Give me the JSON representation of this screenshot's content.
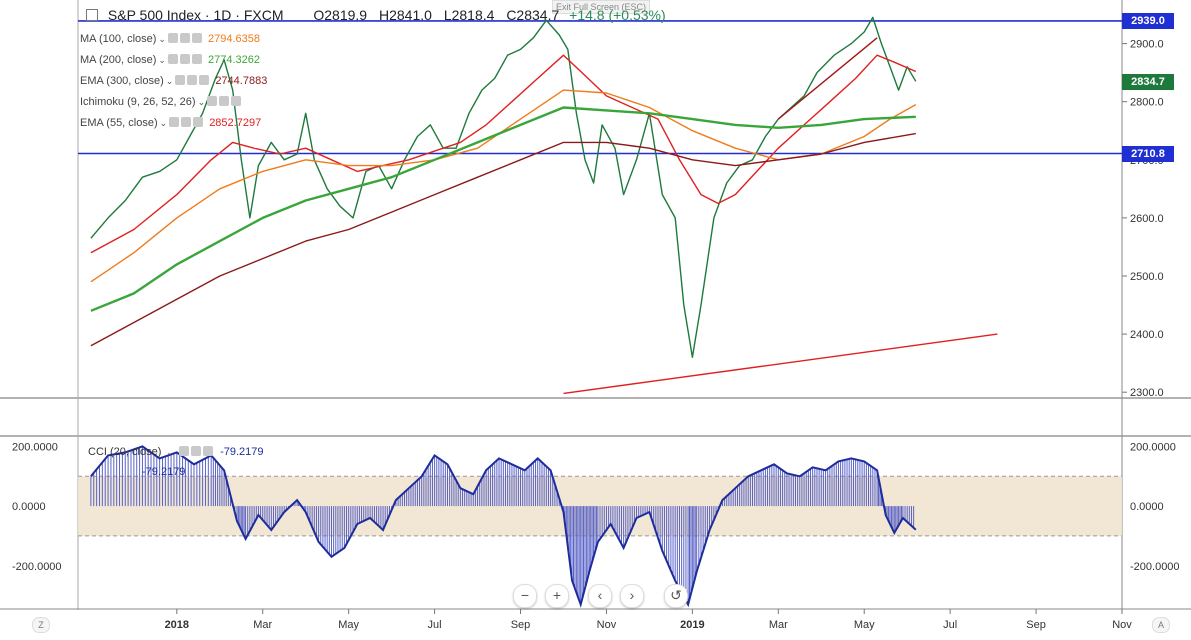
{
  "header": {
    "exit_hint": "Exit Full Screen (ESC)",
    "symbol": "S&P 500 Index · 1D · FXCM",
    "open": "O2819.9",
    "high": "H2841.0",
    "low": "L2818.4",
    "close": "C2834.7",
    "change": "+14.8 (+0.53%)"
  },
  "indicators": [
    {
      "name": "MA (100, close)",
      "value": "2794.6358",
      "color": "#f07b1a"
    },
    {
      "name": "MA (200, close)",
      "value": "2774.3262",
      "color": "#3aa53a"
    },
    {
      "name": "EMA (300, close)",
      "value": "2744.7883",
      "color": "#8b1a1a"
    },
    {
      "name": "Ichimoku (9, 26, 52, 26)",
      "value": "",
      "color": "#999999"
    },
    {
      "name": "EMA (55, close)",
      "value": "2852.7297",
      "color": "#e02020"
    }
  ],
  "cci_legend": {
    "name": "CCI (20, close)",
    "value1": "-79.2179",
    "value2": "-79.2179"
  },
  "price_pills": [
    {
      "label": "2939.0",
      "value": 2939.0,
      "color": "#1f2fd1"
    },
    {
      "label": "2834.7",
      "value": 2834.7,
      "color": "#1e7a3c"
    },
    {
      "label": "2710.8",
      "value": 2710.8,
      "color": "#1f2fd1"
    }
  ],
  "nav": {
    "zoom_out": "−",
    "zoom_in": "+",
    "prev": "‹",
    "next": "›",
    "reset": "↺"
  },
  "corners": {
    "left": "Z",
    "right": "A"
  },
  "chart_data": [
    {
      "type": "line",
      "title": "S&P 500 Index",
      "x_ticks": [
        "2018",
        "Mar",
        "May",
        "Jul",
        "Sep",
        "Nov",
        "2019",
        "Mar",
        "May",
        "Jul",
        "Sep",
        "Nov"
      ],
      "x_tick_months": [
        0,
        2,
        4,
        6,
        8,
        10,
        12,
        14,
        16,
        18,
        20,
        22
      ],
      "x_range_months": [
        -2.3,
        22.0
      ],
      "y_ticks": [
        2300,
        2400,
        2500,
        2600,
        2700,
        2800,
        2900
      ],
      "y_tick_labels": [
        "2300.0",
        "2400.0",
        "2500.0",
        "2600.0",
        "2700.0",
        "2800.0",
        "2900.0"
      ],
      "ylim": [
        2290,
        2975
      ],
      "horizontal_lines": [
        2939.0,
        2710.8
      ],
      "series": [
        {
          "color": "#1e7a3c",
          "role": "price",
          "points": [
            [
              -2.0,
              2565
            ],
            [
              -1.6,
              2600
            ],
            [
              -1.2,
              2630
            ],
            [
              -0.8,
              2670
            ],
            [
              -0.4,
              2680
            ],
            [
              0.0,
              2700
            ],
            [
              0.3,
              2740
            ],
            [
              0.6,
              2780
            ],
            [
              0.9,
              2840
            ],
            [
              1.1,
              2872
            ],
            [
              1.3,
              2820
            ],
            [
              1.5,
              2700
            ],
            [
              1.7,
              2600
            ],
            [
              1.9,
              2690
            ],
            [
              2.2,
              2730
            ],
            [
              2.5,
              2700
            ],
            [
              2.8,
              2710
            ],
            [
              3.0,
              2780
            ],
            [
              3.2,
              2700
            ],
            [
              3.5,
              2650
            ],
            [
              3.8,
              2620
            ],
            [
              4.1,
              2600
            ],
            [
              4.4,
              2680
            ],
            [
              4.7,
              2690
            ],
            [
              5.0,
              2650
            ],
            [
              5.3,
              2700
            ],
            [
              5.6,
              2740
            ],
            [
              5.9,
              2760
            ],
            [
              6.2,
              2720
            ],
            [
              6.5,
              2720
            ],
            [
              6.8,
              2780
            ],
            [
              7.1,
              2820
            ],
            [
              7.4,
              2840
            ],
            [
              7.7,
              2880
            ],
            [
              8.0,
              2890
            ],
            [
              8.3,
              2910
            ],
            [
              8.6,
              2940
            ],
            [
              8.9,
              2915
            ],
            [
              9.1,
              2890
            ],
            [
              9.3,
              2780
            ],
            [
              9.5,
              2700
            ],
            [
              9.7,
              2660
            ],
            [
              9.9,
              2760
            ],
            [
              10.2,
              2720
            ],
            [
              10.4,
              2640
            ],
            [
              10.7,
              2700
            ],
            [
              11.0,
              2780
            ],
            [
              11.3,
              2640
            ],
            [
              11.6,
              2600
            ],
            [
              11.8,
              2450
            ],
            [
              12.0,
              2360
            ],
            [
              12.2,
              2450
            ],
            [
              12.5,
              2600
            ],
            [
              12.8,
              2660
            ],
            [
              13.1,
              2690
            ],
            [
              13.4,
              2700
            ],
            [
              13.7,
              2740
            ],
            [
              14.0,
              2770
            ],
            [
              14.3,
              2790
            ],
            [
              14.6,
              2810
            ],
            [
              14.9,
              2850
            ],
            [
              15.3,
              2880
            ],
            [
              15.7,
              2900
            ],
            [
              16.0,
              2920
            ],
            [
              16.2,
              2945
            ],
            [
              16.4,
              2900
            ],
            [
              16.6,
              2860
            ],
            [
              16.8,
              2820
            ],
            [
              17.0,
              2860
            ],
            [
              17.2,
              2835
            ]
          ]
        },
        {
          "color": "#e02020",
          "role": "EMA 55",
          "points": [
            [
              -2.0,
              2540
            ],
            [
              -1.0,
              2580
            ],
            [
              0.0,
              2640
            ],
            [
              0.8,
              2700
            ],
            [
              1.3,
              2730
            ],
            [
              1.8,
              2720
            ],
            [
              2.4,
              2710
            ],
            [
              3.0,
              2720
            ],
            [
              3.6,
              2700
            ],
            [
              4.2,
              2680
            ],
            [
              4.8,
              2690
            ],
            [
              5.4,
              2700
            ],
            [
              6.0,
              2715
            ],
            [
              6.6,
              2730
            ],
            [
              7.2,
              2760
            ],
            [
              7.8,
              2800
            ],
            [
              8.4,
              2840
            ],
            [
              9.0,
              2880
            ],
            [
              9.5,
              2845
            ],
            [
              10.0,
              2810
            ],
            [
              10.6,
              2790
            ],
            [
              11.2,
              2770
            ],
            [
              11.7,
              2700
            ],
            [
              12.2,
              2640
            ],
            [
              12.6,
              2625
            ],
            [
              13.0,
              2640
            ],
            [
              13.5,
              2680
            ],
            [
              14.0,
              2720
            ],
            [
              14.6,
              2760
            ],
            [
              15.2,
              2800
            ],
            [
              15.8,
              2840
            ],
            [
              16.3,
              2880
            ],
            [
              16.7,
              2868
            ],
            [
              17.2,
              2852
            ]
          ]
        },
        {
          "color": "#f07b1a",
          "role": "MA 100",
          "points": [
            [
              -2.0,
              2490
            ],
            [
              -1.0,
              2540
            ],
            [
              0.0,
              2600
            ],
            [
              1.0,
              2650
            ],
            [
              2.0,
              2680
            ],
            [
              3.0,
              2700
            ],
            [
              4.0,
              2690
            ],
            [
              5.0,
              2690
            ],
            [
              6.0,
              2700
            ],
            [
              7.0,
              2720
            ],
            [
              8.0,
              2770
            ],
            [
              9.0,
              2820
            ],
            [
              10.0,
              2815
            ],
            [
              11.0,
              2790
            ],
            [
              12.0,
              2750
            ],
            [
              13.0,
              2720
            ],
            [
              14.0,
              2700
            ],
            [
              15.0,
              2710
            ],
            [
              16.0,
              2740
            ],
            [
              16.6,
              2770
            ],
            [
              17.2,
              2795
            ]
          ]
        },
        {
          "color": "#3aa53a",
          "role": "MA 200",
          "points": [
            [
              -2.0,
              2440
            ],
            [
              -1.0,
              2470
            ],
            [
              0.0,
              2520
            ],
            [
              1.0,
              2560
            ],
            [
              2.0,
              2600
            ],
            [
              3.0,
              2630
            ],
            [
              4.0,
              2650
            ],
            [
              5.0,
              2670
            ],
            [
              6.0,
              2700
            ],
            [
              7.0,
              2730
            ],
            [
              8.0,
              2760
            ],
            [
              9.0,
              2790
            ],
            [
              10.0,
              2785
            ],
            [
              11.0,
              2780
            ],
            [
              12.0,
              2770
            ],
            [
              13.0,
              2760
            ],
            [
              14.0,
              2755
            ],
            [
              15.0,
              2760
            ],
            [
              16.0,
              2770
            ],
            [
              17.2,
              2774
            ]
          ]
        },
        {
          "color": "#8b1a1a",
          "role": "EMA 300",
          "points": [
            [
              -2.0,
              2380
            ],
            [
              -1.0,
              2420
            ],
            [
              0.0,
              2460
            ],
            [
              1.0,
              2500
            ],
            [
              2.0,
              2530
            ],
            [
              3.0,
              2560
            ],
            [
              4.0,
              2580
            ],
            [
              5.0,
              2610
            ],
            [
              6.0,
              2640
            ],
            [
              7.0,
              2670
            ],
            [
              8.0,
              2700
            ],
            [
              9.0,
              2730
            ],
            [
              10.0,
              2730
            ],
            [
              11.0,
              2720
            ],
            [
              12.0,
              2700
            ],
            [
              13.0,
              2690
            ],
            [
              14.0,
              2700
            ],
            [
              15.0,
              2710
            ],
            [
              16.0,
              2730
            ],
            [
              17.2,
              2745
            ]
          ]
        },
        {
          "color": "#e02020",
          "role": "support trendline",
          "points": [
            [
              9.0,
              2298
            ],
            [
              19.1,
              2400
            ]
          ]
        },
        {
          "color": "#a01818",
          "role": "channel line",
          "points": [
            [
              14.0,
              2770
            ],
            [
              16.3,
              2910
            ]
          ]
        }
      ]
    },
    {
      "type": "bar",
      "title": "CCI",
      "y_ticks": [
        -200,
        0,
        200
      ],
      "y_tick_labels": [
        "-200.0000",
        "0.0000",
        "200.0000"
      ],
      "ylim": [
        -345,
        235
      ],
      "band": [
        -100,
        100
      ],
      "x_range_months": [
        -2.3,
        22.0
      ],
      "points": [
        [
          -2.0,
          100
        ],
        [
          -1.6,
          170
        ],
        [
          -1.2,
          180
        ],
        [
          -0.8,
          200
        ],
        [
          -0.4,
          160
        ],
        [
          0.0,
          180
        ],
        [
          0.4,
          140
        ],
        [
          0.8,
          170
        ],
        [
          1.1,
          120
        ],
        [
          1.4,
          -50
        ],
        [
          1.6,
          -110
        ],
        [
          1.9,
          -30
        ],
        [
          2.2,
          -80
        ],
        [
          2.5,
          -20
        ],
        [
          2.8,
          20
        ],
        [
          3.0,
          -20
        ],
        [
          3.3,
          -120
        ],
        [
          3.6,
          -170
        ],
        [
          3.9,
          -140
        ],
        [
          4.2,
          -60
        ],
        [
          4.5,
          -40
        ],
        [
          4.8,
          -80
        ],
        [
          5.1,
          20
        ],
        [
          5.4,
          60
        ],
        [
          5.7,
          100
        ],
        [
          6.0,
          170
        ],
        [
          6.3,
          140
        ],
        [
          6.6,
          60
        ],
        [
          6.9,
          40
        ],
        [
          7.2,
          120
        ],
        [
          7.5,
          160
        ],
        [
          7.8,
          140
        ],
        [
          8.1,
          120
        ],
        [
          8.4,
          160
        ],
        [
          8.7,
          120
        ],
        [
          9.0,
          -20
        ],
        [
          9.2,
          -250
        ],
        [
          9.4,
          -330
        ],
        [
          9.6,
          -220
        ],
        [
          9.8,
          -120
        ],
        [
          10.1,
          -60
        ],
        [
          10.4,
          -140
        ],
        [
          10.7,
          -40
        ],
        [
          11.0,
          -20
        ],
        [
          11.3,
          -150
        ],
        [
          11.6,
          -250
        ],
        [
          11.9,
          -330
        ],
        [
          12.1,
          -220
        ],
        [
          12.4,
          -80
        ],
        [
          12.7,
          20
        ],
        [
          13.0,
          60
        ],
        [
          13.3,
          100
        ],
        [
          13.6,
          120
        ],
        [
          13.9,
          140
        ],
        [
          14.2,
          110
        ],
        [
          14.5,
          100
        ],
        [
          14.8,
          130
        ],
        [
          15.1,
          120
        ],
        [
          15.4,
          150
        ],
        [
          15.7,
          160
        ],
        [
          16.0,
          150
        ],
        [
          16.3,
          120
        ],
        [
          16.5,
          -30
        ],
        [
          16.7,
          -90
        ],
        [
          16.9,
          -40
        ],
        [
          17.2,
          -79
        ]
      ]
    }
  ]
}
